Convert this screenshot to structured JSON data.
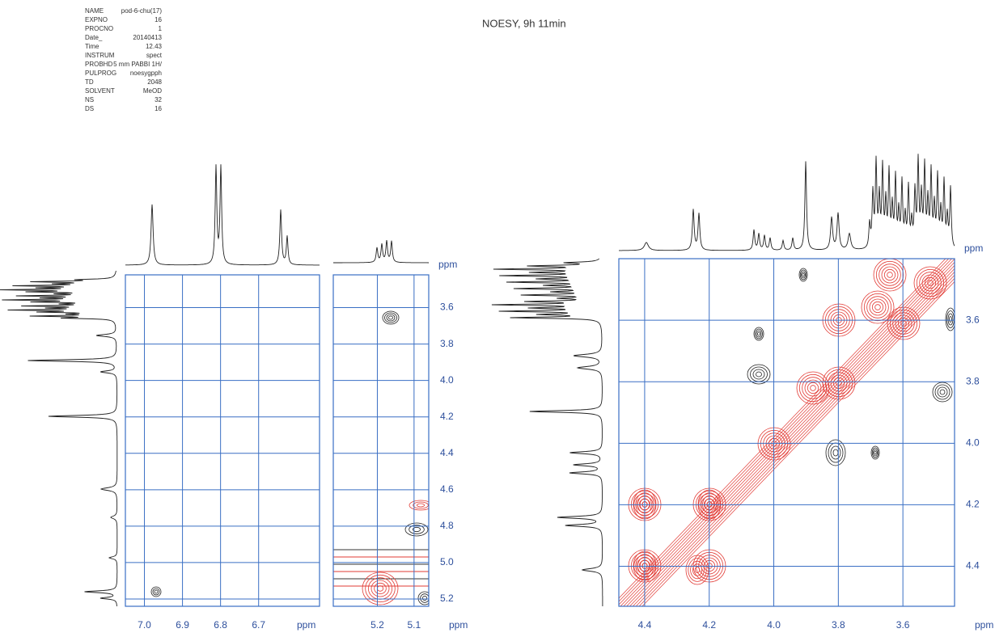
{
  "title": "NOESY, 9h 11min",
  "parameters": [
    [
      "NAME",
      "pod-6-chu(17)"
    ],
    [
      "EXPNO",
      "16"
    ],
    [
      "PROCNO",
      "1"
    ],
    [
      "Date_",
      "20140413"
    ],
    [
      "Time",
      "12.43"
    ],
    [
      "INSTRUM",
      "spect"
    ],
    [
      "PROBHD",
      "5 mm PABBI 1H/"
    ],
    [
      "PULPROG",
      "noesygpph"
    ],
    [
      "TD",
      "2048"
    ],
    [
      "SOLVENT",
      "MeOD"
    ],
    [
      "NS",
      "32"
    ],
    [
      "DS",
      "16"
    ]
  ],
  "panels": [
    {
      "xlim": [
        7.05,
        6.54
      ],
      "ylim": [
        3.42,
        5.24
      ],
      "xticks": [
        {
          "value": 7.0,
          "label": "7.0"
        },
        {
          "value": 6.9,
          "label": "6.9"
        },
        {
          "value": 6.8,
          "label": "6.8"
        },
        {
          "value": 6.7,
          "label": "6.7"
        }
      ],
      "x_unit": "ppm"
    },
    {
      "xlim": [
        5.32,
        5.06
      ],
      "ylim": [
        3.42,
        5.24
      ],
      "xticks": [
        {
          "value": 5.2,
          "label": "5.2"
        },
        {
          "value": 5.1,
          "label": "5.1"
        }
      ],
      "yticks": [
        {
          "value": 3.6,
          "label": "3.6"
        },
        {
          "value": 3.8,
          "label": "3.8"
        },
        {
          "value": 4.0,
          "label": "4.0"
        },
        {
          "value": 4.2,
          "label": "4.2"
        },
        {
          "value": 4.4,
          "label": "4.4"
        },
        {
          "value": 4.6,
          "label": "4.6"
        },
        {
          "value": 4.8,
          "label": "4.8"
        },
        {
          "value": 5.0,
          "label": "5.0"
        },
        {
          "value": 5.2,
          "label": "5.2"
        }
      ],
      "x_unit": "ppm",
      "y_unit": "ppm"
    },
    {
      "xlim": [
        4.48,
        3.44
      ],
      "ylim": [
        3.4,
        4.53
      ],
      "xticks": [
        {
          "value": 4.4,
          "label": "4.4"
        },
        {
          "value": 4.2,
          "label": "4.2"
        },
        {
          "value": 4.0,
          "label": "4.0"
        },
        {
          "value": 3.8,
          "label": "3.8"
        },
        {
          "value": 3.6,
          "label": "3.6"
        }
      ],
      "yticks": [
        {
          "value": 3.6,
          "label": "3.6"
        },
        {
          "value": 3.8,
          "label": "3.8"
        },
        {
          "value": 4.0,
          "label": "4.0"
        },
        {
          "value": 4.2,
          "label": "4.2"
        },
        {
          "value": 4.4,
          "label": "4.4"
        }
      ],
      "x_unit": "ppm",
      "y_unit": "ppm"
    }
  ]
}
